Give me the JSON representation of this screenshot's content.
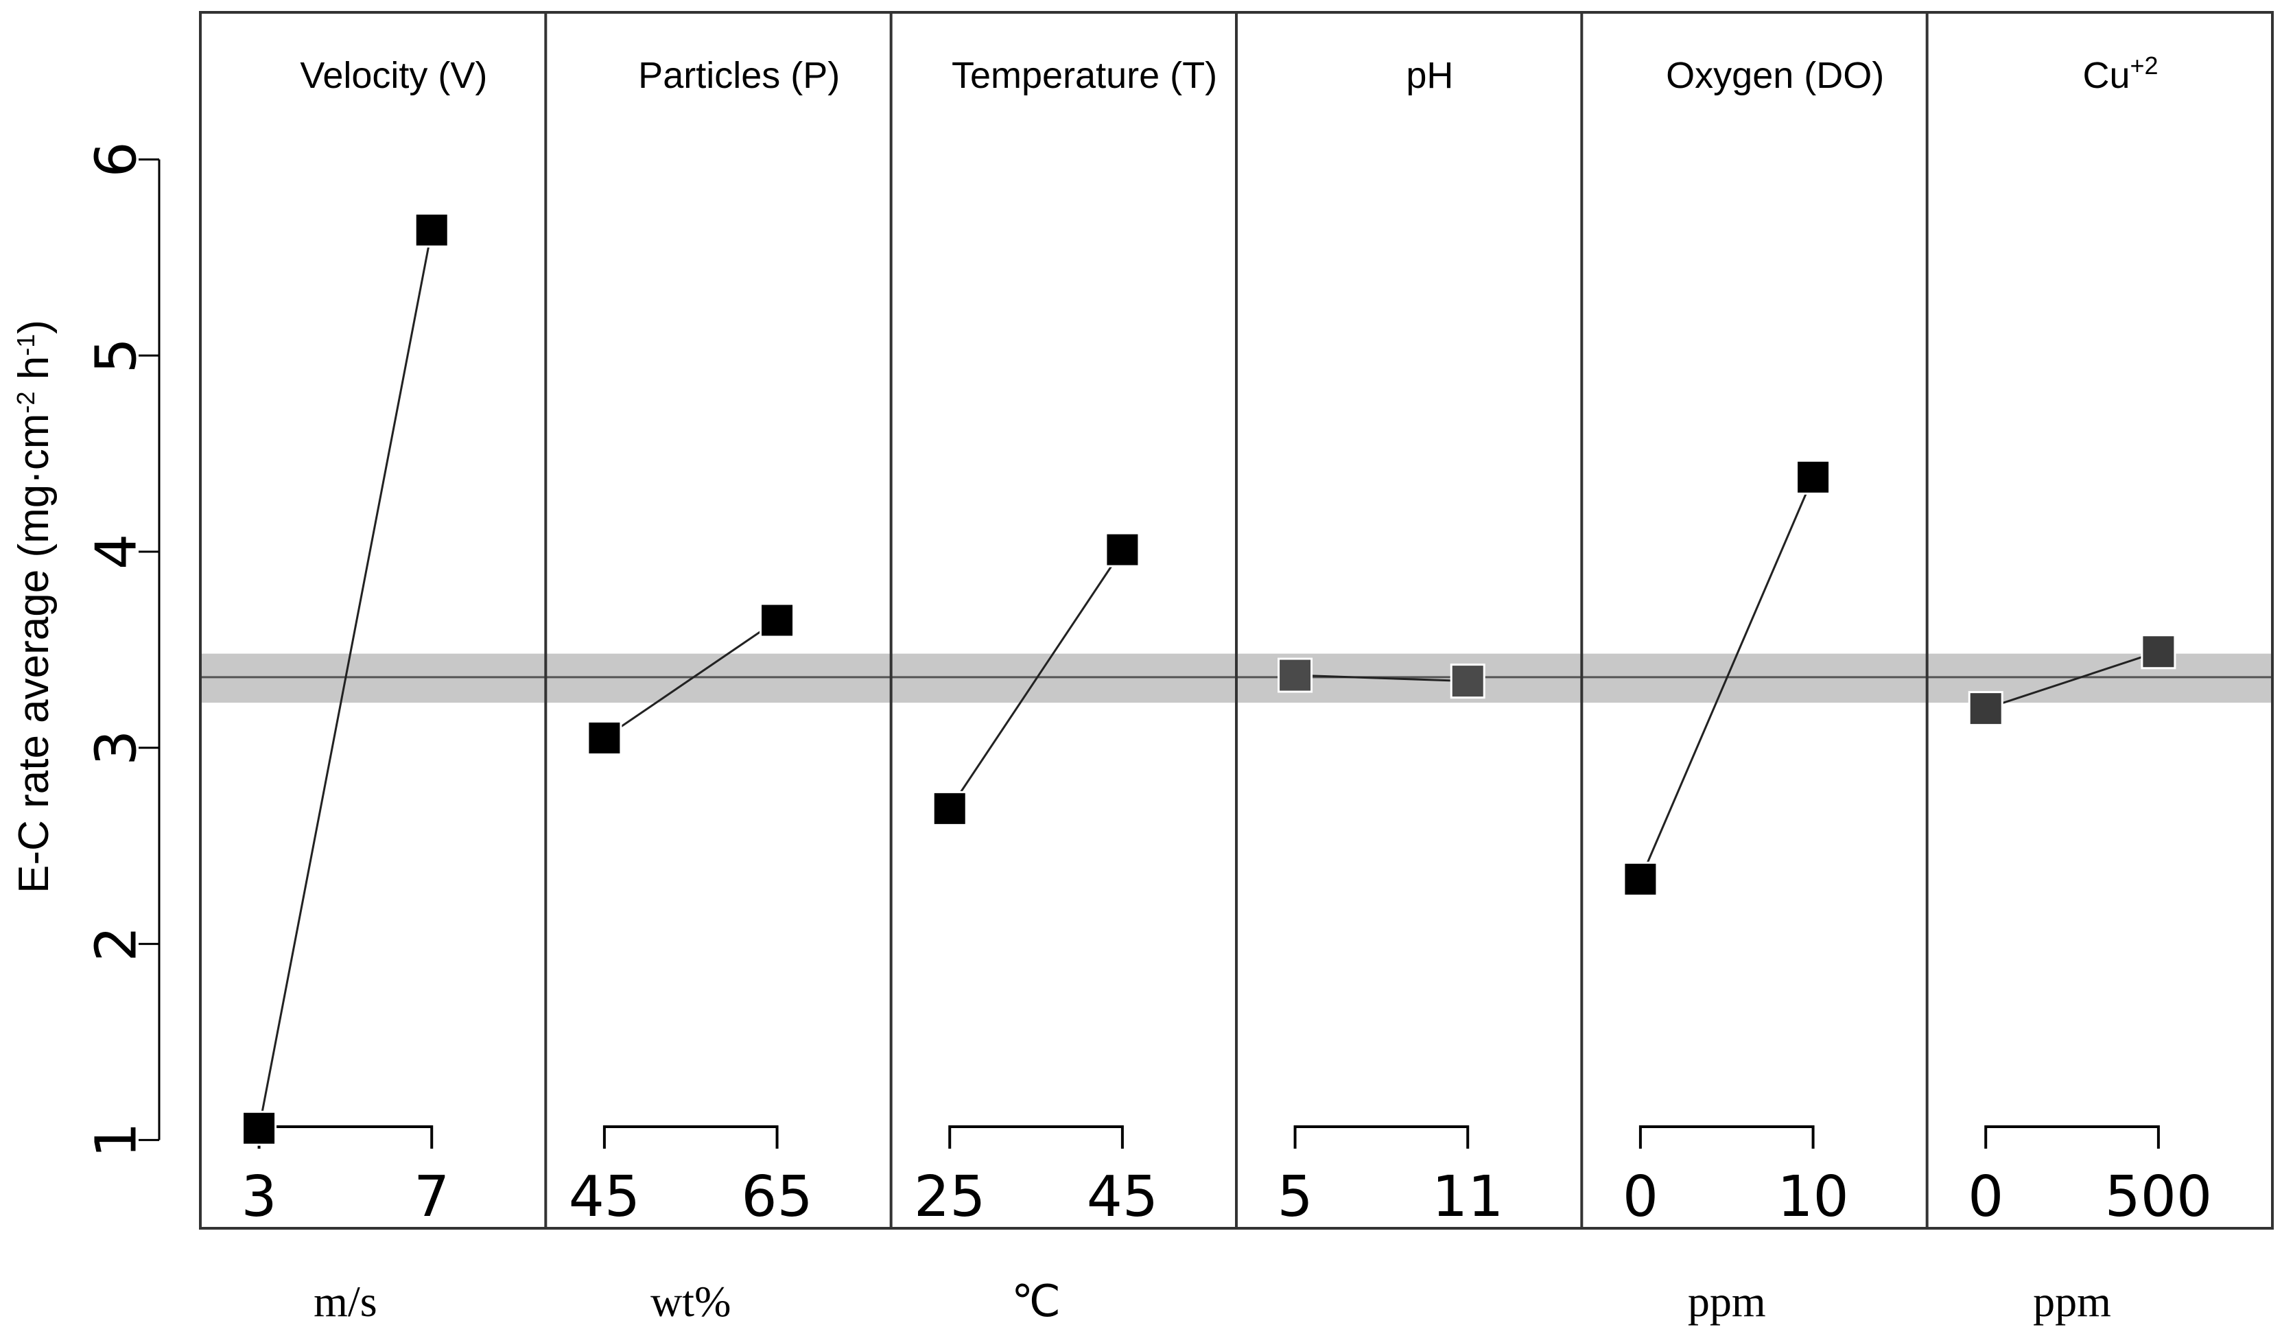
{
  "chart_data": {
    "type": "line",
    "title": "",
    "ylabel": "E-C rate average (mg·cm⁻² h⁻¹)",
    "ylabel_parts": {
      "pre": "E-C rate average (mg·cm",
      "sup1": "-2",
      "mid": " h",
      "sup2": "-1",
      "post": ")"
    },
    "ylim": [
      0.55,
      6.75
    ],
    "yticks": [
      1,
      2,
      3,
      4,
      5,
      6
    ],
    "grand_mean": 3.36,
    "band": [
      3.23,
      3.48
    ],
    "panels": [
      {
        "title": "Velocity (V)",
        "title_sup": "",
        "levels": [
          "3",
          "7"
        ],
        "values": [
          1.06,
          5.64
        ],
        "unit": "m/s",
        "marker_color": "#000000"
      },
      {
        "title": "Particles (P)",
        "title_sup": "",
        "levels": [
          "45",
          "65"
        ],
        "values": [
          3.05,
          3.65
        ],
        "unit": "wt%",
        "marker_color": "#000000"
      },
      {
        "title": "Temperature (T)",
        "title_sup": "",
        "levels": [
          "25",
          "45"
        ],
        "values": [
          2.69,
          4.01
        ],
        "unit": "℃",
        "marker_color": "#000000"
      },
      {
        "title": "pH",
        "title_sup": "",
        "levels": [
          "5",
          "11"
        ],
        "values": [
          3.37,
          3.34
        ],
        "unit": "",
        "marker_color": "#4a4a4a"
      },
      {
        "title": "Oxygen (DO)",
        "title_sup": "",
        "levels": [
          "0",
          "10"
        ],
        "values": [
          2.33,
          4.38
        ],
        "unit": "ppm",
        "marker_color": "#000000"
      },
      {
        "title": "Cu",
        "title_sup": "+2",
        "levels": [
          "0",
          "500"
        ],
        "values": [
          3.2,
          3.49
        ],
        "unit": "ppm",
        "marker_color": "#3a3a3a"
      }
    ],
    "colors": {
      "band": "#c8c8c8",
      "mean_line": "#555555",
      "connector": "#222222",
      "frame": "#333333"
    }
  }
}
